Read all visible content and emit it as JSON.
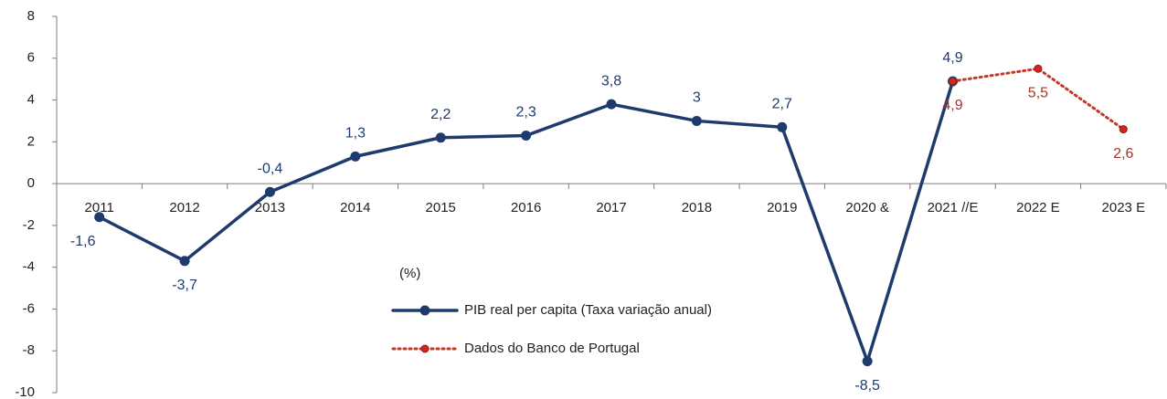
{
  "chart_data": {
    "type": "line",
    "categories": [
      "2011",
      "2012",
      "2013",
      "2014",
      "2015",
      "2016",
      "2017",
      "2018",
      "2019",
      "2020 &",
      "2021 //E",
      "2022 E",
      "2023 E"
    ],
    "series": [
      {
        "name": "PIB real per capita (Taxa variação anual)",
        "color": "#1f3b6e",
        "label_color": "#1f3b6e",
        "dash": false,
        "values": [
          -1.6,
          -3.7,
          -0.4,
          1.3,
          2.2,
          2.3,
          3.8,
          3,
          2.7,
          -8.5,
          4.9,
          null,
          null
        ],
        "value_labels": [
          "-1,6",
          "-3,7",
          "-0,4",
          "1,3",
          "2,2",
          "2,3",
          "3,8",
          "3",
          "2,7",
          "-8,5",
          "4,9",
          null,
          null
        ]
      },
      {
        "name": "Dados do Banco de Portugal",
        "color": "#c0392b",
        "label_color": "#a5352c",
        "dash": true,
        "values": [
          null,
          null,
          null,
          null,
          null,
          null,
          null,
          null,
          null,
          null,
          4.9,
          5.5,
          2.6
        ],
        "value_labels": [
          null,
          null,
          null,
          null,
          null,
          null,
          null,
          null,
          null,
          null,
          "4,9",
          "5,5",
          "2,6"
        ]
      }
    ],
    "annotation": "(%)",
    "ylim": [
      -10,
      8
    ],
    "yticks": [
      -10,
      -8,
      -6,
      -4,
      -2,
      0,
      2,
      4,
      6,
      8
    ],
    "legend": "center"
  }
}
